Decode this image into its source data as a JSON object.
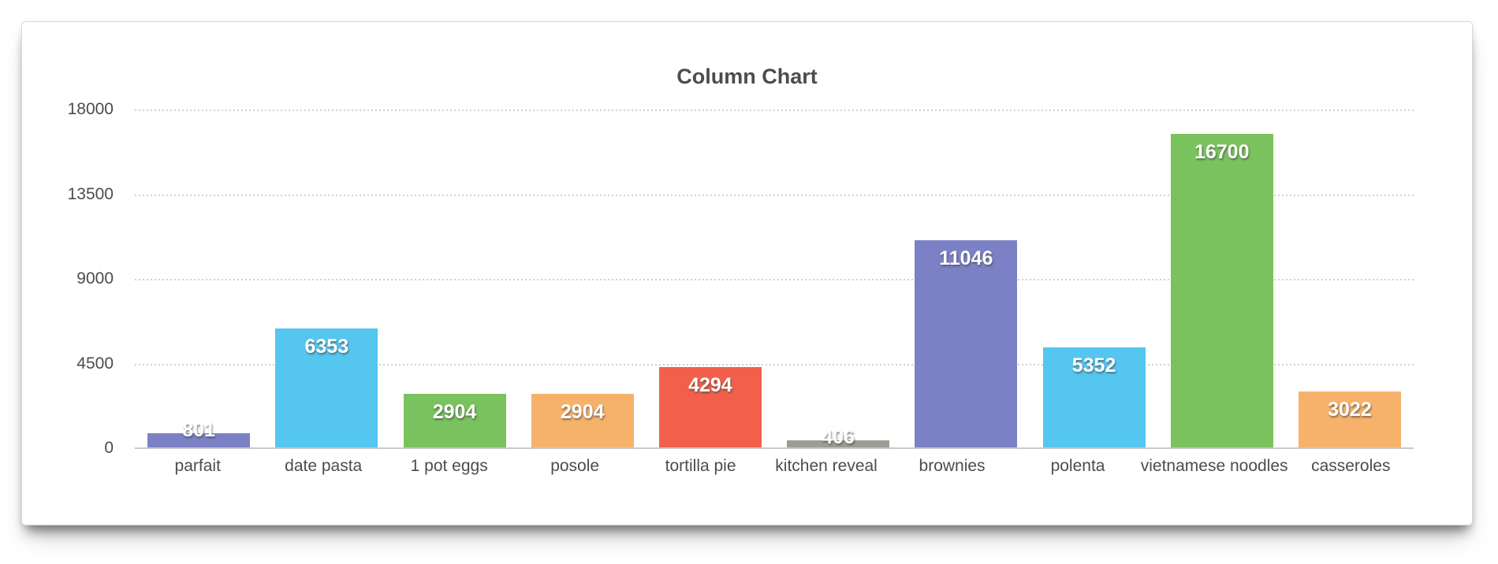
{
  "chart_data": {
    "type": "bar",
    "title": "Column Chart",
    "categories": [
      "parfait",
      "date pasta",
      "1 pot eggs",
      "posole",
      "tortilla pie",
      "kitchen reveal",
      "brownies",
      "polenta",
      "vietnamese noodles",
      "casseroles"
    ],
    "values": [
      801,
      6353,
      2904,
      2904,
      4294,
      406,
      11046,
      5352,
      16700,
      3022
    ],
    "bar_colors": [
      "#7c81c6",
      "#54c6f0",
      "#79c25d",
      "#f6b26b",
      "#f2604b",
      "#9b9d96",
      "#7c81c6",
      "#54c6f0",
      "#79c25d",
      "#f6b26b"
    ],
    "y_ticks": [
      "18000",
      "13500",
      "9000",
      "4500",
      "0"
    ],
    "ylim": [
      0,
      18000
    ],
    "xlabel": "",
    "ylabel": "",
    "grid": "horizontal dotted gridlines at each y tick, solid baseline at 0",
    "legend_position": "none",
    "value_labels": "white bold numbers with drop shadow at top of each bar"
  },
  "styles": {
    "text_color": "#4c4c4c",
    "gridline_color": "#cfcfcf",
    "axis_line_color": "#c9c9c9",
    "value_label_color": "#ffffff",
    "card_background": "#ffffff",
    "page_background": "#ffffff"
  }
}
